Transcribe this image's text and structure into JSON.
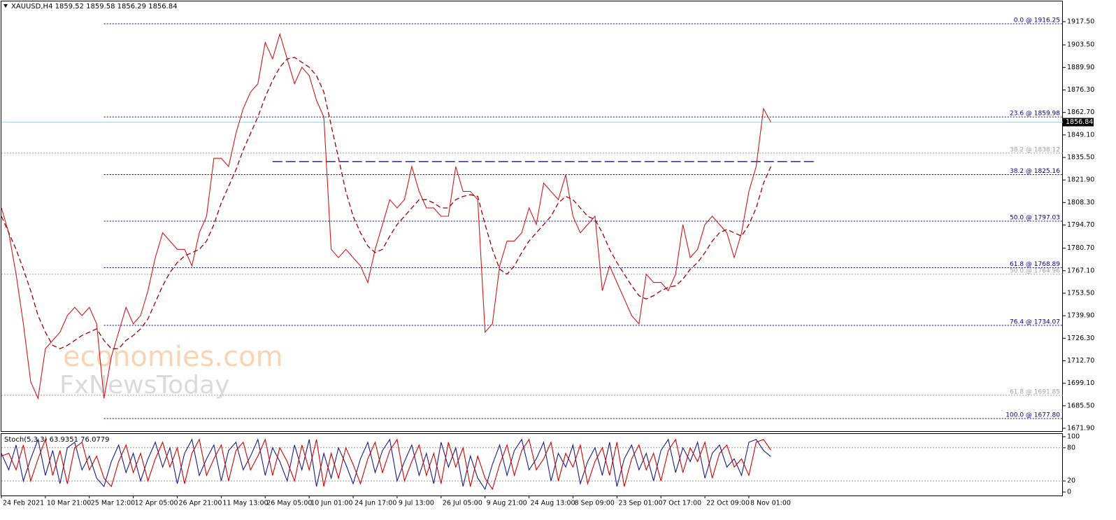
{
  "chart_data": [
    {
      "type": "line",
      "title": "XAUUSD,H4 1859.52 1859.58 1856.29 1856.84",
      "categories": [
        "24 Feb 2021",
        null,
        null,
        null,
        null,
        null,
        "10 Mar 21:00",
        null,
        null,
        null,
        null,
        null,
        "25 Mar 12:00",
        null,
        null,
        null,
        null,
        null,
        "12 Apr 05:00",
        null,
        null,
        null,
        null,
        null,
        "26 Apr 21:00",
        null,
        null,
        null,
        null,
        null,
        "11 May 13:00",
        null,
        null,
        null,
        null,
        null,
        "26 May 05:00",
        null,
        null,
        null,
        null,
        null,
        "10 Jun 01:00",
        null,
        null,
        null,
        null,
        null,
        "24 Jun 17:00",
        null,
        null,
        null,
        null,
        null,
        "9 Jul 13:00",
        null,
        null,
        null,
        null,
        null,
        "26 Jul 05:00",
        null,
        null,
        null,
        null,
        null,
        "9 Aug 21:00",
        null,
        null,
        null,
        null,
        null,
        "24 Aug 13:00",
        null,
        null,
        null,
        null,
        null,
        "8 Sep 09:00",
        null,
        null,
        null,
        null,
        null,
        "23 Sep 01:00",
        null,
        null,
        null,
        null,
        null,
        "7 Oct 17:00",
        null,
        null,
        null,
        null,
        null,
        "22 Oct 09:00",
        null,
        null,
        null,
        null,
        null,
        "8 Nov 01:00",
        null,
        null,
        null
      ],
      "series": [
        {
          "color": "#d01818",
          "dash": false,
          "values": [
            1805,
            1790,
            1765,
            1735,
            1700,
            1690,
            1720,
            1725,
            1730,
            1740,
            1745,
            1740,
            1745,
            1735,
            1690,
            1715,
            1730,
            1745,
            1735,
            1740,
            1755,
            1775,
            1790,
            1785,
            1780,
            1780,
            1770,
            1790,
            1800,
            1835,
            1835,
            1830,
            1850,
            1865,
            1875,
            1880,
            1905,
            1895,
            1910,
            1895,
            1880,
            1890,
            1885,
            1870,
            1860,
            1780,
            1775,
            1780,
            1775,
            1770,
            1760,
            1780,
            1795,
            1810,
            1805,
            1810,
            1830,
            1815,
            1805,
            1805,
            1800,
            1800,
            1830,
            1815,
            1815,
            1810,
            1730,
            1735,
            1770,
            1785,
            1785,
            1790,
            1805,
            1795,
            1820,
            1815,
            1810,
            1825,
            1800,
            1790,
            1795,
            1800,
            1755,
            1770,
            1760,
            1750,
            1740,
            1735,
            1765,
            1760,
            1760,
            1755,
            1765,
            1795,
            1775,
            1780,
            1795,
            1800,
            1795,
            1790,
            1775,
            1790,
            1815,
            1830,
            1865,
            1856.84
          ]
        },
        {
          "color": "#a00000",
          "dash": true,
          "values": [
            1800,
            1790,
            1780,
            1768,
            1755,
            1740,
            1730,
            1722,
            1720,
            1722,
            1725,
            1728,
            1730,
            1732,
            1725,
            1720,
            1720,
            1725,
            1728,
            1732,
            1738,
            1748,
            1758,
            1766,
            1772,
            1776,
            1778,
            1780,
            1785,
            1795,
            1808,
            1818,
            1828,
            1840,
            1850,
            1860,
            1872,
            1882,
            1890,
            1895,
            1896,
            1893,
            1890,
            1885,
            1875,
            1855,
            1835,
            1815,
            1800,
            1790,
            1782,
            1778,
            1780,
            1788,
            1795,
            1800,
            1805,
            1810,
            1810,
            1808,
            1805,
            1805,
            1810,
            1812,
            1813,
            1812,
            1795,
            1780,
            1768,
            1765,
            1770,
            1778,
            1785,
            1790,
            1795,
            1800,
            1808,
            1812,
            1810,
            1805,
            1800,
            1798,
            1790,
            1780,
            1772,
            1765,
            1758,
            1752,
            1750,
            1752,
            1755,
            1757,
            1758,
            1762,
            1768,
            1772,
            1778,
            1785,
            1790,
            1792,
            1790,
            1788,
            1795,
            1805,
            1820,
            1830
          ]
        }
      ],
      "ylim": [
        1670.21,
        1929.76
      ],
      "yticks": [
        {
          "value": 1917.5,
          "label": "1917.50"
        },
        {
          "value": 1903.5,
          "label": "1903.50"
        },
        {
          "value": 1889.9,
          "label": "1889.90"
        },
        {
          "value": 1876.3,
          "label": "1876.30"
        },
        {
          "value": 1862.7,
          "label": "1862.70"
        },
        {
          "value": 1849.1,
          "label": "1849.10"
        },
        {
          "value": 1835.5,
          "label": "1835.50"
        },
        {
          "value": 1821.9,
          "label": "1821.90"
        },
        {
          "value": 1808.3,
          "label": "1808.30"
        },
        {
          "value": 1794.7,
          "label": "1794.70"
        },
        {
          "value": 1780.7,
          "label": "1780.70"
        },
        {
          "value": 1767.1,
          "label": "1767.10"
        },
        {
          "value": 1753.5,
          "label": "1753.50"
        },
        {
          "value": 1739.9,
          "label": "1739.90"
        },
        {
          "value": 1726.3,
          "label": "1726.30"
        },
        {
          "value": 1712.7,
          "label": "1712.70"
        },
        {
          "value": 1699.1,
          "label": "1699.10"
        },
        {
          "value": 1685.5,
          "label": "1685.50"
        },
        {
          "value": 1671.9,
          "label": "1671.90"
        }
      ],
      "grid": false,
      "last_price": 1856.84,
      "resistance": {
        "value": 1833,
        "from": 37,
        "to": 111,
        "color": "#000080"
      },
      "fibonacci": [
        {
          "color": "#000080",
          "from": 14,
          "levels": [
            {
              "value": 1916.25,
              "label": "0.0 @ 1916.25"
            },
            {
              "value": 1859.98,
              "label": "23.6 @ 1859.98"
            },
            {
              "value": 1825.16,
              "label": "38.2 @ 1825.16"
            },
            {
              "value": 1797.03,
              "label": "50.0 @ 1797.03"
            },
            {
              "value": 1768.89,
              "label": "61.8 @ 1768.89"
            },
            {
              "value": 1734.07,
              "label": "76.4 @ 1734.07"
            },
            {
              "value": 1677.8,
              "label": "100.0 @ 1677.80"
            }
          ]
        },
        {
          "color": "#a0a0a0",
          "from": 0,
          "levels": [
            {
              "value": 1838.12,
              "label": "38.2 @ 1838.12"
            },
            {
              "value": 1764.96,
              "label": "50.0 @ 1764.96"
            },
            {
              "value": 1691.85,
              "label": "61.8 @ 1691.85"
            }
          ]
        }
      ]
    },
    {
      "type": "line",
      "title": "Stoch(5,3,3) 63.9351 76.0779",
      "series": [
        {
          "color": "#1a1a8c",
          "dash": false,
          "values": [
            70,
            40,
            85,
            20,
            60,
            95,
            30,
            75,
            15,
            80,
            90,
            40,
            65,
            25,
            10,
            55,
            85,
            35,
            70,
            20,
            60,
            90,
            45,
            80,
            15,
            70,
            95,
            30,
            60,
            85,
            20,
            75,
            90,
            40,
            65,
            95,
            30,
            80,
            55,
            20,
            85,
            40,
            95,
            10,
            70,
            25,
            80,
            50,
            15,
            60,
            90,
            35,
            75,
            95,
            20,
            55,
            85,
            30,
            70,
            15,
            90,
            45,
            80,
            10,
            65,
            25,
            5,
            50,
            85,
            30,
            75,
            95,
            40,
            60,
            90,
            20,
            70,
            45,
            85,
            15,
            55,
            80,
            30,
            90,
            10,
            60,
            85,
            40,
            70,
            20,
            75,
            95,
            35,
            80,
            55,
            90,
            25,
            70,
            85,
            45,
            60,
            30,
            90,
            95,
            75,
            64
          ]
        },
        {
          "color": "#d40000",
          "dash": false,
          "values": [
            65,
            70,
            40,
            85,
            20,
            60,
            95,
            30,
            75,
            15,
            80,
            90,
            40,
            65,
            25,
            10,
            55,
            85,
            35,
            70,
            20,
            60,
            90,
            45,
            80,
            15,
            70,
            95,
            30,
            60,
            85,
            20,
            75,
            90,
            40,
            65,
            95,
            30,
            80,
            55,
            20,
            85,
            40,
            95,
            10,
            70,
            25,
            80,
            50,
            15,
            60,
            90,
            35,
            75,
            95,
            20,
            55,
            85,
            30,
            70,
            15,
            90,
            45,
            80,
            10,
            65,
            25,
            5,
            50,
            85,
            30,
            75,
            95,
            40,
            60,
            90,
            20,
            70,
            45,
            85,
            15,
            55,
            80,
            30,
            90,
            10,
            60,
            85,
            40,
            70,
            20,
            75,
            95,
            35,
            80,
            55,
            90,
            25,
            70,
            85,
            45,
            60,
            30,
            90,
            95,
            76
          ]
        }
      ],
      "ylim": [
        -6.33,
        105.06
      ],
      "yticks": [
        100,
        80,
        20,
        0
      ],
      "levels": [
        80,
        20
      ]
    }
  ],
  "watermark": {
    "line1": "economies.com",
    "line2": "FxNewsToday"
  }
}
